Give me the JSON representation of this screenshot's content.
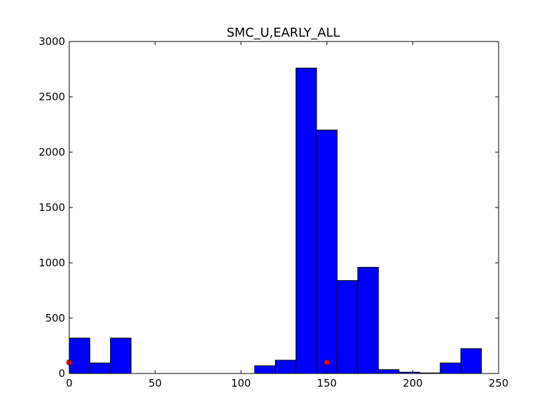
{
  "chart_data": {
    "type": "bar",
    "title": "SMC_U,EARLY_ALL",
    "xlabel": "",
    "ylabel": "",
    "xlim": [
      0,
      250
    ],
    "ylim": [
      0,
      3000
    ],
    "x_ticks": [
      0,
      50,
      100,
      150,
      200,
      250
    ],
    "y_ticks": [
      0,
      500,
      1000,
      1500,
      2000,
      2500,
      3000
    ],
    "grid": false,
    "bar_color": "#0000ff",
    "edge_color": "#000000",
    "bins": [
      {
        "start": 0,
        "end": 12,
        "value": 320
      },
      {
        "start": 12,
        "end": 24,
        "value": 95
      },
      {
        "start": 24,
        "end": 36,
        "value": 320
      },
      {
        "start": 36,
        "end": 48,
        "value": 0
      },
      {
        "start": 48,
        "end": 60,
        "value": 0
      },
      {
        "start": 60,
        "end": 72,
        "value": 0
      },
      {
        "start": 72,
        "end": 84,
        "value": 0
      },
      {
        "start": 84,
        "end": 96,
        "value": 0
      },
      {
        "start": 96,
        "end": 108,
        "value": 0
      },
      {
        "start": 108,
        "end": 120,
        "value": 70
      },
      {
        "start": 120,
        "end": 132,
        "value": 120
      },
      {
        "start": 132,
        "end": 144,
        "value": 2760
      },
      {
        "start": 144,
        "end": 156,
        "value": 2200
      },
      {
        "start": 156,
        "end": 168,
        "value": 840
      },
      {
        "start": 168,
        "end": 180,
        "value": 960
      },
      {
        "start": 180,
        "end": 192,
        "value": 35
      },
      {
        "start": 192,
        "end": 204,
        "value": 12
      },
      {
        "start": 204,
        "end": 216,
        "value": 5
      },
      {
        "start": 216,
        "end": 228,
        "value": 95
      },
      {
        "start": 228,
        "end": 240,
        "value": 225
      }
    ],
    "markers": {
      "color": "#ff0000",
      "points": [
        {
          "x": 0,
          "y": 100
        },
        {
          "x": 150,
          "y": 100
        }
      ]
    }
  }
}
